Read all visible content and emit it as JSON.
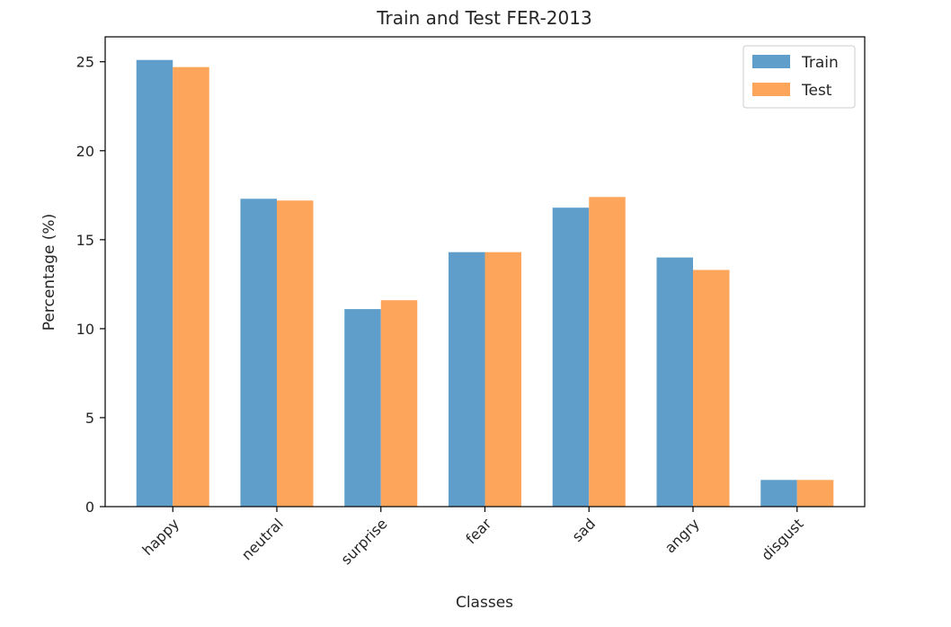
{
  "chart_data": {
    "type": "bar",
    "title": "Train and Test FER-2013",
    "xlabel": "Classes",
    "ylabel": "Percentage (%)",
    "categories": [
      "happy",
      "neutral",
      "surprise",
      "fear",
      "sad",
      "angry",
      "disgust"
    ],
    "series": [
      {
        "name": "Train",
        "color": "#5f9ecb",
        "values": [
          25.1,
          17.3,
          11.1,
          14.3,
          16.8,
          14.0,
          1.5
        ]
      },
      {
        "name": "Test",
        "color": "#fda55a",
        "values": [
          24.7,
          17.2,
          11.6,
          14.3,
          17.4,
          13.3,
          1.5
        ]
      }
    ],
    "ylim": [
      0,
      26.4
    ],
    "yticks": [
      0,
      5,
      10,
      15,
      20,
      25
    ],
    "grid": false,
    "legend_position": "top-right"
  }
}
